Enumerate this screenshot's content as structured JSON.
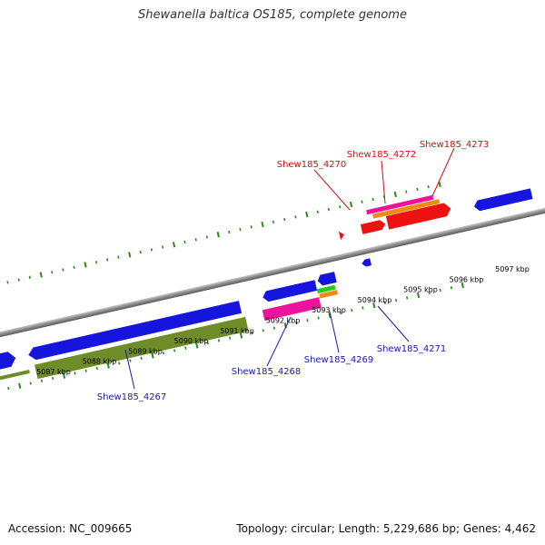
{
  "header": {
    "title": "Shewanella baltica OS185, complete genome"
  },
  "colors": {
    "backbone": "#8a8a8a",
    "ticks": "#2a8a1a",
    "upper_label": "#d21010",
    "lower_label": "#1a1aa8",
    "blue": "#1515dd",
    "red": "#ee1111",
    "olive": "#6e8c28",
    "magenta": "#ee1199",
    "orange": "#f08a10",
    "green": "#22cc22"
  },
  "scale": {
    "ticks": [
      {
        "label": "5087 kbp"
      },
      {
        "label": "5088 kbp"
      },
      {
        "label": "5089 kbp"
      },
      {
        "label": "5090 kbp"
      },
      {
        "label": "5091 kbp"
      },
      {
        "label": "5092 kbp"
      },
      {
        "label": "5093 kbp"
      },
      {
        "label": "5094 kbp"
      },
      {
        "label": "5095 kbp"
      },
      {
        "label": "5096 kbp"
      },
      {
        "label": "5097 kbp"
      }
    ]
  },
  "upper_labels": [
    "Shew185_4270",
    "Shew185_4272",
    "Shew185_4273"
  ],
  "lower_labels": [
    "Shew185_4267",
    "Shew185_4268",
    "Shew185_4269",
    "Shew185_4271"
  ],
  "footer": {
    "accession": "Accession: NC_009665",
    "stats": "Topology: circular; Length: 5,229,686 bp; Genes: 4,462"
  }
}
